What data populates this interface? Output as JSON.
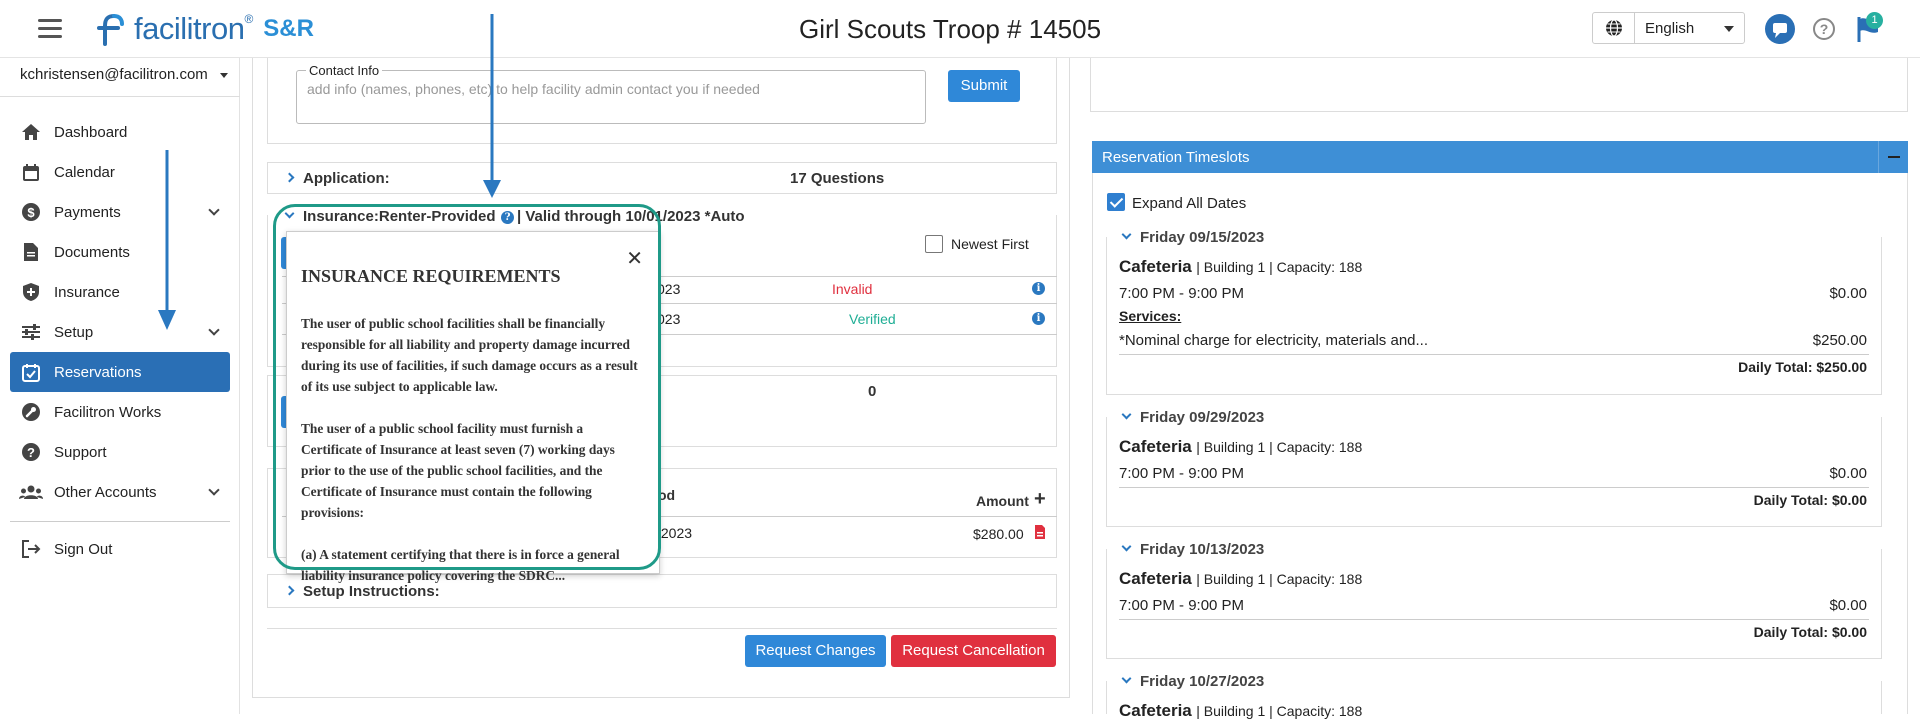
{
  "header": {
    "logo_text": "facilitron",
    "logo_reg": "®",
    "logo_suffix": "S&R",
    "title": "Girl Scouts Troop # 14505",
    "language": "English",
    "notification_count": "1"
  },
  "sidebar": {
    "account": "kchristensen@facilitron.com",
    "items": [
      {
        "label": "Dashboard",
        "icon": "home-icon"
      },
      {
        "label": "Calendar",
        "icon": "calendar-icon"
      },
      {
        "label": "Payments",
        "icon": "dollar-icon"
      },
      {
        "label": "Documents",
        "icon": "document-icon"
      },
      {
        "label": "Insurance",
        "icon": "shield-icon"
      },
      {
        "label": "Setup",
        "icon": "sliders-icon"
      },
      {
        "label": "Reservations",
        "icon": "calendar-check-icon"
      },
      {
        "label": "Facilitron Works",
        "icon": "wrench-icon"
      },
      {
        "label": "Support",
        "icon": "help-icon"
      },
      {
        "label": "Other Accounts",
        "icon": "users-icon"
      }
    ],
    "sign_out": "Sign Out"
  },
  "main": {
    "contact_label": "Contact Info",
    "contact_placeholder": "add info (names, phones, etc) to help facility admin contact you if needed",
    "submit": "Submit",
    "application_label": "Application:",
    "application_count": "17 Questions",
    "insurance_label": "Insurance:Renter-Provided",
    "insurance_valid": "| Valid through 10/01/2023 *Auto",
    "newest_first": "Newest First",
    "ins_row1_date": "023",
    "ins_row1_status": "Invalid",
    "ins_row2_date": "023",
    "ins_row2_status": "Verified",
    "zero_count": "0",
    "payment_col_method": "od",
    "payment_col_amount": "Amount",
    "payment_row_date": "/2023",
    "payment_row_amount": "$280.00",
    "setup_label": "Setup Instructions:",
    "request_changes": "Request Changes",
    "request_cancellation": "Request Cancellation"
  },
  "popover": {
    "heading": "INSURANCE REQUIREMENTS",
    "p1": "The user of public school facilities shall be financially responsible for all liability and property damage incurred during its use of facilities, if such damage occurs as a result of its use subject to applicable law.",
    "p2": "The user of a public school facility must furnish a Certificate of Insurance at least seven (7) working days prior to the use of the public school facilities, and the Certificate of Insurance must contain the following provisions:",
    "p3": "(a) A statement certifying that there is in force a general liability insurance policy covering the SDRC..."
  },
  "timeslots": {
    "title": "Reservation Timeslots",
    "expand_all": "Expand All Dates",
    "slots": [
      {
        "date": "Friday 09/15/2023",
        "location": "Cafeteria",
        "meta": "| Building 1 | Capacity: 188",
        "time": "7:00 PM - 9:00 PM",
        "time_amount": "$0.00",
        "services_label": "Services:",
        "service": "*Nominal charge for electricity, materials and...",
        "service_amount": "$250.00",
        "daily_total": "Daily Total: $250.00"
      },
      {
        "date": "Friday 09/29/2023",
        "location": "Cafeteria",
        "meta": "| Building 1 | Capacity: 188",
        "time": "7:00 PM - 9:00 PM",
        "time_amount": "$0.00",
        "daily_total": "Daily Total: $0.00"
      },
      {
        "date": "Friday 10/13/2023",
        "location": "Cafeteria",
        "meta": "| Building 1 | Capacity: 188",
        "time": "7:00 PM - 9:00 PM",
        "time_amount": "$0.00",
        "daily_total": "Daily Total: $0.00"
      },
      {
        "date": "Friday 10/27/2023",
        "location": "Cafeteria",
        "meta": "| Building 1 | Capacity: 188"
      }
    ]
  },
  "colors": {
    "brand_blue": "#2a6fb5",
    "highlight_teal": "#1f9a88",
    "danger": "#e0303f",
    "success": "#1fae95"
  }
}
